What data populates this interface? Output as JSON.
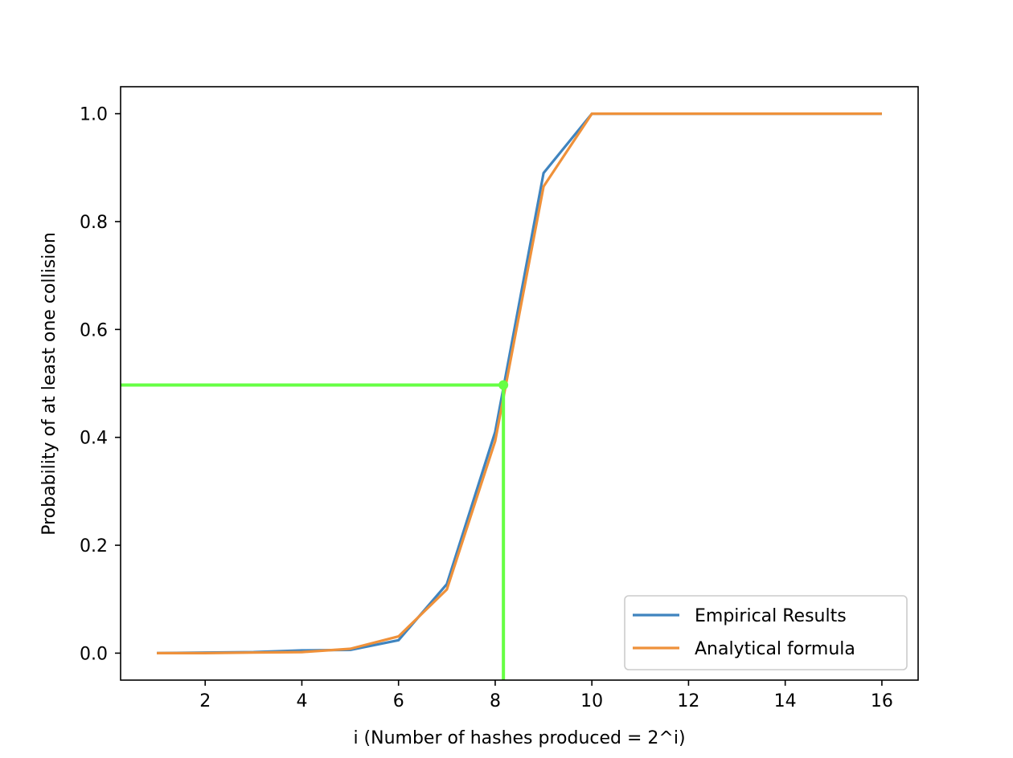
{
  "chart_data": {
    "type": "line",
    "title": "",
    "xlabel": "i (Number of hashes produced = 2^i)",
    "ylabel": "Probability of at least one collision",
    "xlim": [
      0.25,
      16.75
    ],
    "ylim": [
      -0.05,
      1.05
    ],
    "xticks": [
      2,
      4,
      6,
      8,
      10,
      12,
      14,
      16
    ],
    "yticks": [
      0.0,
      0.2,
      0.4,
      0.6,
      0.8,
      1.0
    ],
    "xtick_labels": [
      "2",
      "4",
      "6",
      "8",
      "10",
      "12",
      "14",
      "16"
    ],
    "ytick_labels": [
      "0.0",
      "0.2",
      "0.4",
      "0.6",
      "0.8",
      "1.0"
    ],
    "grid": false,
    "legend_position": "lower-right",
    "series": [
      {
        "name": "Empirical Results",
        "color": "#3f84bf",
        "x": [
          1,
          2,
          3,
          4,
          5,
          6,
          7,
          8,
          9,
          10,
          11,
          12,
          13,
          14,
          15,
          16
        ],
        "y": [
          0.0,
          0.001,
          0.002,
          0.005,
          0.006,
          0.024,
          0.128,
          0.41,
          0.89,
          1.0,
          1.0,
          1.0,
          1.0,
          1.0,
          1.0,
          1.0
        ]
      },
      {
        "name": "Analytical formula",
        "color": "#ef913a",
        "x": [
          1,
          2,
          3,
          4,
          5,
          6,
          7,
          8,
          9,
          10,
          11,
          12,
          13,
          14,
          15,
          16
        ],
        "y": [
          0.0,
          0.0,
          0.001,
          0.002,
          0.008,
          0.031,
          0.118,
          0.393,
          0.865,
          1.0,
          1.0,
          1.0,
          1.0,
          1.0,
          1.0,
          1.0
        ]
      }
    ],
    "annotations": {
      "color": "#66ff44",
      "point": {
        "x": 8.17,
        "y": 0.497
      },
      "horizontal_line_y": 0.497,
      "vertical_line_x": 8.17
    }
  }
}
